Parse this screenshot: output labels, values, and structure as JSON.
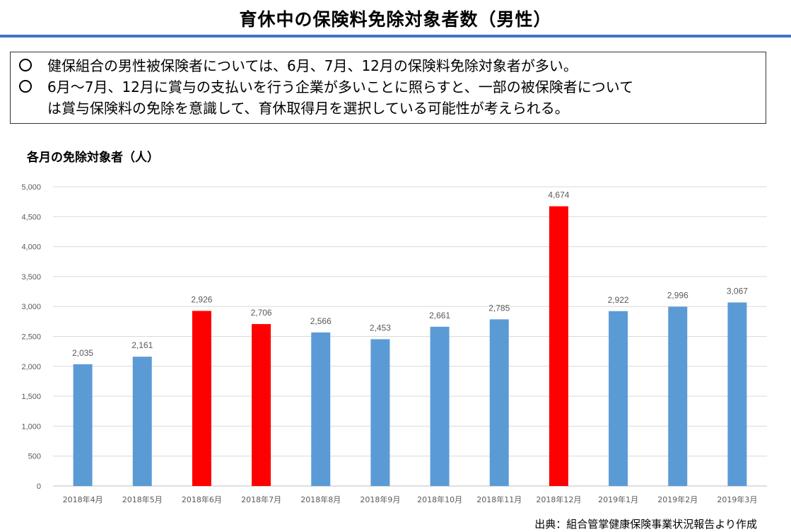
{
  "page": {
    "title": "育休中の保険料免除対象者数（男性）",
    "summary": [
      "健保組合の男性被保険者については、6月、7月、12月の保険料免除対象者が多い。",
      "6月～7月、12月に賞与の支払いを行う企業が多いことに照らすと、一部の被保険者について",
      "は賞与保険料の免除を意識して、育休取得月を選択している可能性が考えられる。"
    ],
    "source": "出典：組合管掌健康保険事業状況報告より作成"
  },
  "chart_data": {
    "type": "bar",
    "title": "各月の免除対象者（人）",
    "categories": [
      "2018年4月",
      "2018年5月",
      "2018年6月",
      "2018年7月",
      "2018年8月",
      "2018年9月",
      "2018年10月",
      "2018年11月",
      "2018年12月",
      "2019年1月",
      "2019年2月",
      "2019年3月"
    ],
    "values": [
      2035,
      2161,
      2926,
      2706,
      2566,
      2453,
      2661,
      2785,
      4674,
      2922,
      2996,
      3067
    ],
    "value_labels": [
      "2,035",
      "2,161",
      "2,926",
      "2,706",
      "2,566",
      "2,453",
      "2,661",
      "2,785",
      "4,674",
      "2,922",
      "2,996",
      "3,067"
    ],
    "highlighted": [
      false,
      false,
      true,
      true,
      false,
      false,
      false,
      false,
      true,
      false,
      false,
      false
    ],
    "ylim": [
      0,
      5000
    ],
    "yticks": [
      0,
      500,
      1000,
      1500,
      2000,
      2500,
      3000,
      3500,
      4000,
      4500,
      5000
    ],
    "ytick_labels": [
      "0",
      "500",
      "1,000",
      "1,500",
      "2,000",
      "2,500",
      "3,000",
      "3,500",
      "4,000",
      "4,500",
      "5,000"
    ],
    "xlabel": "",
    "ylabel": "",
    "grid": true,
    "colors": {
      "default": "#5b9bd5",
      "highlight": "#ff0000",
      "grid": "#d9d9d9",
      "axis": "#bfbfbf",
      "tick_text": "#595959"
    }
  }
}
